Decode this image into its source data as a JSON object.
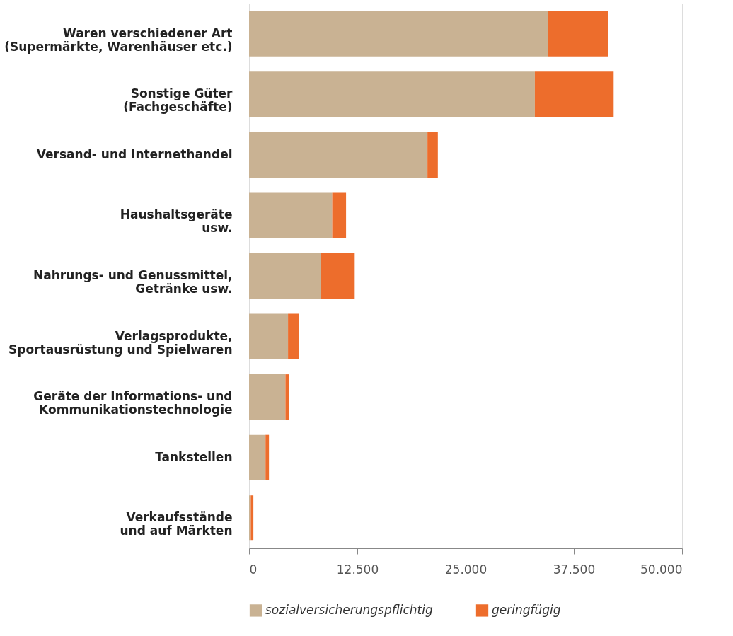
{
  "chart_data": {
    "type": "bar",
    "orientation": "horizontal",
    "stacked": true,
    "categories": [
      "Waren verschiedener Art\n(Supermärkte, Warenhäuser etc.)",
      "Sonstige Güter\n(Fachgeschäfte)",
      "Versand- und Internethandel",
      "Haushaltsgeräte\nusw.",
      "Nahrungs- und Genussmittel,\nGetränke usw.",
      "Verlagsprodukte,\nSportausrüstung und Spielwaren",
      "Geräte der Informations- und\nKommunikationstechnologie",
      "Tankstellen",
      "Verkaufsstände\nund auf Märkten"
    ],
    "series": [
      {
        "name": "sozialversicherungspflichtig",
        "color": "#c9b293",
        "values": [
          34500,
          33000,
          20600,
          9600,
          8300,
          4500,
          4200,
          1900,
          200
        ]
      },
      {
        "name": "geringfügig",
        "color": "#ed6d2c",
        "values": [
          7000,
          9100,
          1200,
          1600,
          3900,
          1300,
          400,
          400,
          300
        ]
      }
    ],
    "xlim": [
      0,
      50000
    ],
    "xticks": [
      0,
      {
        "value": 12500,
        "label": "12.500"
      },
      {
        "value": 25000,
        "label": "25.000"
      },
      {
        "value": 37500,
        "label": "37.500"
      },
      {
        "value": 50000,
        "label": "50.000"
      }
    ],
    "grid": false,
    "legend": "bottom"
  }
}
